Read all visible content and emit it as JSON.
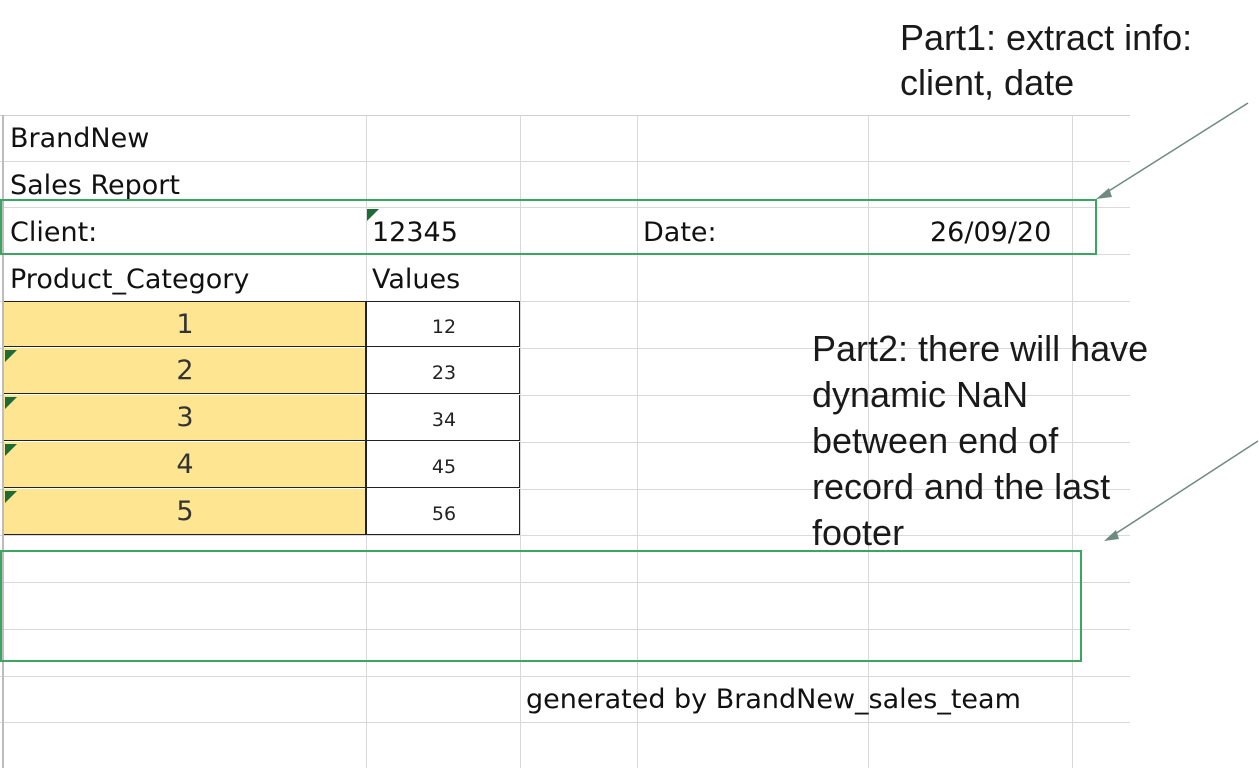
{
  "sheet": {
    "title_cell": "BrandNew",
    "subtitle_cell": "Sales Report",
    "client_label": "Client:",
    "client_value": "12345",
    "date_label": "Date:",
    "date_value": "26/09/20",
    "header_category": "Product_Category",
    "header_values": "Values",
    "rows": [
      {
        "category": "1",
        "value": "12"
      },
      {
        "category": "2",
        "value": "23"
      },
      {
        "category": "3",
        "value": "34"
      },
      {
        "category": "4",
        "value": "45"
      },
      {
        "category": "5",
        "value": "56"
      }
    ],
    "footer": "generated by BrandNew_sales_team"
  },
  "annotations": {
    "part1_line1": "Part1: extract info:",
    "part1_line2": "client, date",
    "part2_line1": "Part2: there will have",
    "part2_line2": "dynamic NaN",
    "part2_line3": "between end of",
    "part2_line4": "record and the last",
    "part2_line5": "footer",
    "highlight_color": "#3aa661",
    "fill_color": "#fde591"
  }
}
